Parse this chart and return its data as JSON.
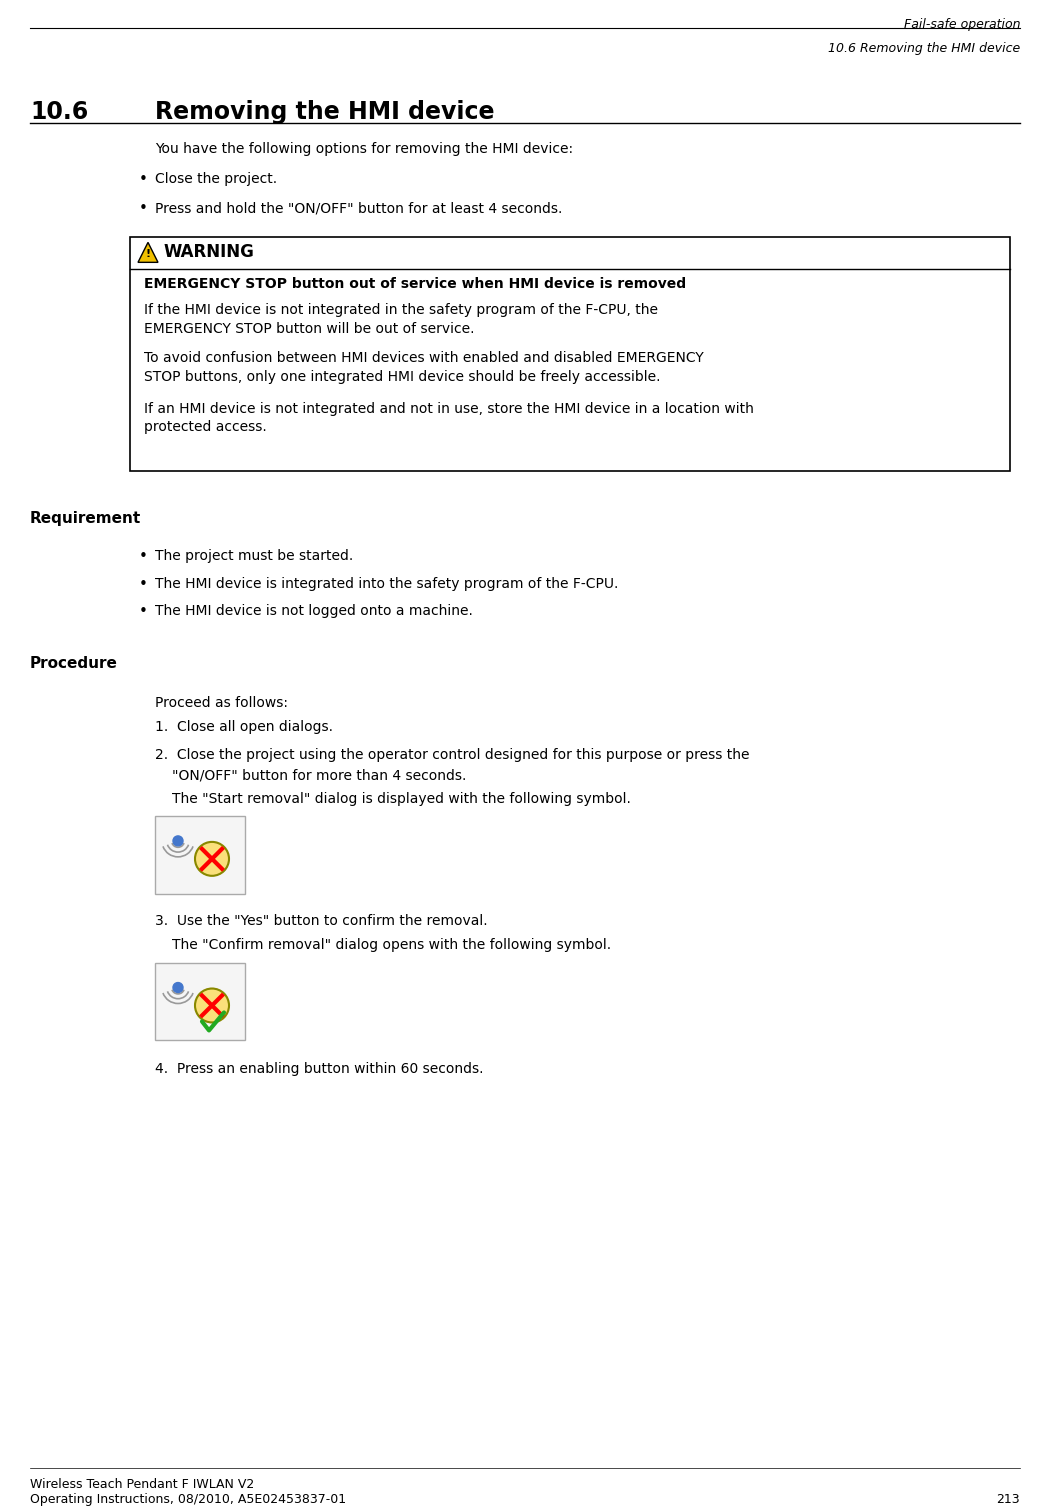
{
  "header_line1": "Fail-safe operation",
  "header_line2": "10.6 Removing the HMI device",
  "section_number": "10.6",
  "section_title": "Removing the HMI device",
  "intro_text": "You have the following options for removing the HMI device:",
  "bullet1": "Close the project.",
  "bullet2": "Press and hold the \"ON/OFF\" button for at least 4 seconds.",
  "warning_label": "WARNING",
  "warning_bold_title": "EMERGENCY STOP button out of service when HMI device is removed",
  "warning_p1": "If the HMI device is not integrated in the safety program of the F-CPU, the\nEMERGENCY STOP button will be out of service.",
  "warning_p2": "To avoid confusion between HMI devices with enabled and disabled EMERGENCY\nSTOP buttons, only one integrated HMI device should be freely accessible.",
  "warning_p3": "If an HMI device is not integrated and not in use, store the HMI device in a location with\nprotected access.",
  "req_label": "Requirement",
  "req_bullet1": "The project must be started.",
  "req_bullet2": "The HMI device is integrated into the safety program of the F-CPU.",
  "req_bullet3": "The HMI device is not logged onto a machine.",
  "proc_label": "Procedure",
  "proc_intro": "Proceed as follows:",
  "step1": "Close all open dialogs.",
  "step2a": "Close the project using the operator control designed for this purpose or press the",
  "step2b": "\"ON/OFF\" button for more than 4 seconds.",
  "step2c": "The \"Start removal\" dialog is displayed with the following symbol.",
  "step3a": "Use the \"Yes\" button to confirm the removal.",
  "step3b": "The \"Confirm removal\" dialog opens with the following symbol.",
  "step4": "Press an enabling button within 60 seconds.",
  "footer_line1": "Wireless Teach Pendant F IWLAN V2",
  "footer_line2": "Operating Instructions, 08/2010, A5E02453837-01",
  "footer_page": "213",
  "bg_color": "#ffffff",
  "text_color": "#000000",
  "warning_box_color": "#ffffff",
  "warning_border_color": "#000000",
  "header_line_color": "#000000"
}
